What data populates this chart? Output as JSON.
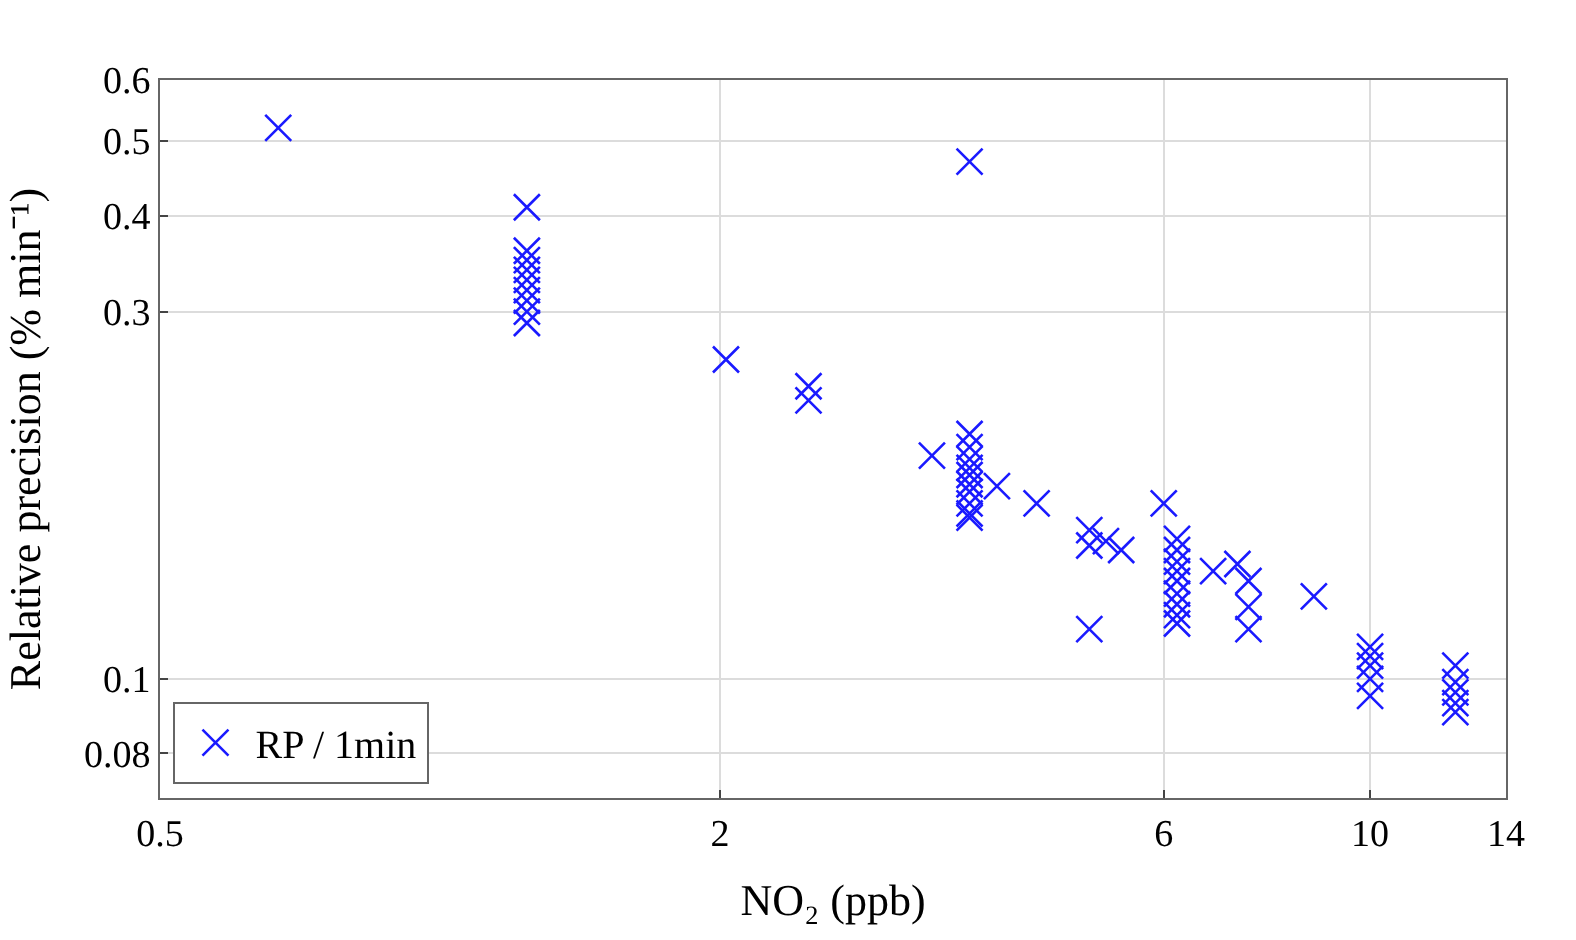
{
  "chart_data": {
    "type": "scatter",
    "xlabel": "NO₂ (ppb)",
    "ylabel": "Relative precision (% min⁻¹)",
    "log": "xy",
    "grid": true,
    "legend": "bottom left",
    "marker": "cross",
    "xlim": [
      0.5,
      14
    ],
    "xticks": [
      0.5,
      2,
      6,
      10,
      14
    ],
    "ylim": [
      0.07,
      0.6
    ],
    "yticks": [
      0.08,
      0.1,
      0.3,
      0.4,
      0.5,
      0.6
    ],
    "series": [
      {
        "name": "RP / 1min",
        "color": "#1a1aff",
        "x": [
          0.67,
          1.24,
          1.24,
          1.24,
          1.24,
          1.24,
          1.24,
          1.24,
          1.24,
          1.24,
          2.03,
          2.49,
          2.49,
          3.38,
          3.71,
          3.71,
          3.71,
          3.71,
          3.71,
          3.71,
          3.71,
          3.71,
          3.71,
          3.71,
          3.71,
          3.97,
          4.38,
          4.99,
          4.99,
          4.99,
          5.2,
          5.4,
          6.0,
          6.2,
          6.2,
          6.2,
          6.2,
          6.2,
          6.2,
          6.2,
          6.2,
          6.2,
          6.78,
          7.2,
          7.4,
          7.4,
          7.4,
          8.7,
          10,
          10,
          10,
          10,
          10,
          12.35,
          12.35,
          12.35,
          12.35,
          12.35
        ],
        "values": [
          0.52,
          0.41,
          0.36,
          0.35,
          0.34,
          0.33,
          0.32,
          0.31,
          0.3,
          0.29,
          0.26,
          0.24,
          0.23,
          0.195,
          0.47,
          0.208,
          0.2,
          0.193,
          0.188,
          0.184,
          0.179,
          0.175,
          0.169,
          0.164,
          0.162,
          0.178,
          0.169,
          0.156,
          0.149,
          0.116,
          0.151,
          0.147,
          0.169,
          0.152,
          0.147,
          0.142,
          0.138,
          0.134,
          0.129,
          0.125,
          0.121,
          0.118,
          0.138,
          0.141,
          0.134,
          0.124,
          0.116,
          0.128,
          0.11,
          0.107,
          0.104,
          0.1,
          0.095,
          0.104,
          0.099,
          0.096,
          0.093,
          0.0905
        ]
      }
    ]
  }
}
